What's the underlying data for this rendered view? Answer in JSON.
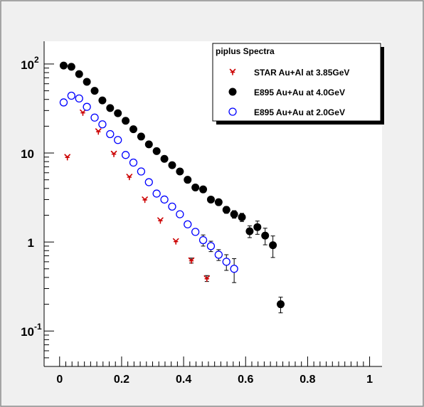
{
  "colors": {
    "frame_bg": "#f0f0f0",
    "plot_bg": "#ffffff",
    "axis": "#000000",
    "star": "#cc0000",
    "e895_40": "#000000",
    "e895_20": "#0000ff"
  },
  "chart_data": {
    "type": "scatter",
    "title": "",
    "xlabel": "",
    "ylabel": "",
    "xlim": [
      -0.05,
      1.04
    ],
    "ylim": [
      0.04,
      180
    ],
    "yscale": "log",
    "grid": false,
    "legend_position": "top-right",
    "x_ticks": [
      {
        "v": 0,
        "label": "0"
      },
      {
        "v": 0.2,
        "label": "0.2"
      },
      {
        "v": 0.4,
        "label": "0.4"
      },
      {
        "v": 0.6,
        "label": "0.6"
      },
      {
        "v": 0.8,
        "label": "0.8"
      },
      {
        "v": 1,
        "label": "1"
      }
    ],
    "y_ticks": [
      {
        "v": 0.1,
        "base": "10",
        "exp": "-1"
      },
      {
        "v": 1,
        "base": "1",
        "exp": ""
      },
      {
        "v": 10,
        "base": "10",
        "exp": ""
      },
      {
        "v": 100,
        "base": "10",
        "exp": "2"
      }
    ],
    "legend": {
      "title": "piplus Spectra",
      "entries": [
        {
          "label": "STAR Au+Al at 3.85GeV"
        },
        {
          "label": "E895 Au+Au at 4.0GeV"
        },
        {
          "label": "E895 Au+Au at 2.0GeV"
        }
      ]
    },
    "series": [
      {
        "name": "STAR Au+Al at 3.85GeV",
        "marker": "star",
        "points": [
          {
            "x": 0.025,
            "y": 9.0,
            "err": 0
          },
          {
            "x": 0.075,
            "y": 28.5,
            "err": 0
          },
          {
            "x": 0.125,
            "y": 17.5,
            "err": 0
          },
          {
            "x": 0.175,
            "y": 9.8,
            "err": 0
          },
          {
            "x": 0.225,
            "y": 5.4,
            "err": 0
          },
          {
            "x": 0.275,
            "y": 3.0,
            "err": 0
          },
          {
            "x": 0.325,
            "y": 1.75,
            "err": 0
          },
          {
            "x": 0.375,
            "y": 1.02,
            "err": 0
          },
          {
            "x": 0.425,
            "y": 0.62,
            "err": 0.04
          },
          {
            "x": 0.475,
            "y": 0.39,
            "err": 0.03
          }
        ]
      },
      {
        "name": "E895 Au+Au at 4.0GeV",
        "marker": "filled-circle",
        "points": [
          {
            "x": 0.013,
            "y": 96,
            "err": 0
          },
          {
            "x": 0.038,
            "y": 93,
            "err": 0
          },
          {
            "x": 0.063,
            "y": 77,
            "err": 0
          },
          {
            "x": 0.088,
            "y": 63,
            "err": 0
          },
          {
            "x": 0.113,
            "y": 50,
            "err": 0
          },
          {
            "x": 0.138,
            "y": 39,
            "err": 0
          },
          {
            "x": 0.163,
            "y": 32,
            "err": 0
          },
          {
            "x": 0.188,
            "y": 28,
            "err": 0
          },
          {
            "x": 0.213,
            "y": 23,
            "err": 0
          },
          {
            "x": 0.238,
            "y": 18.5,
            "err": 0
          },
          {
            "x": 0.263,
            "y": 15.3,
            "err": 0
          },
          {
            "x": 0.288,
            "y": 12.5,
            "err": 0
          },
          {
            "x": 0.313,
            "y": 10.5,
            "err": 0
          },
          {
            "x": 0.338,
            "y": 8.6,
            "err": 0
          },
          {
            "x": 0.363,
            "y": 7.3,
            "err": 0
          },
          {
            "x": 0.388,
            "y": 6.2,
            "err": 0
          },
          {
            "x": 0.413,
            "y": 5.0,
            "err": 0
          },
          {
            "x": 0.438,
            "y": 4.1,
            "err": 0.2
          },
          {
            "x": 0.463,
            "y": 3.9,
            "err": 0.2
          },
          {
            "x": 0.488,
            "y": 3.0,
            "err": 0.2
          },
          {
            "x": 0.513,
            "y": 2.8,
            "err": 0.2
          },
          {
            "x": 0.538,
            "y": 2.3,
            "err": 0.2
          },
          {
            "x": 0.563,
            "y": 2.05,
            "err": 0.2
          },
          {
            "x": 0.588,
            "y": 1.9,
            "err": 0.2
          },
          {
            "x": 0.613,
            "y": 1.32,
            "err": 0.2
          },
          {
            "x": 0.638,
            "y": 1.47,
            "err": 0.25
          },
          {
            "x": 0.663,
            "y": 1.18,
            "err": 0.25
          },
          {
            "x": 0.688,
            "y": 0.92,
            "err": 0.25
          },
          {
            "x": 0.713,
            "y": 0.2,
            "err": 0.04
          }
        ]
      },
      {
        "name": "E895 Au+Au at 2.0GeV",
        "marker": "open-circle",
        "points": [
          {
            "x": 0.013,
            "y": 37,
            "err": 0
          },
          {
            "x": 0.038,
            "y": 44,
            "err": 0
          },
          {
            "x": 0.063,
            "y": 41,
            "err": 0
          },
          {
            "x": 0.088,
            "y": 33,
            "err": 0
          },
          {
            "x": 0.113,
            "y": 25,
            "err": 0
          },
          {
            "x": 0.138,
            "y": 21,
            "err": 0
          },
          {
            "x": 0.163,
            "y": 16.3,
            "err": 0
          },
          {
            "x": 0.188,
            "y": 14.0,
            "err": 0
          },
          {
            "x": 0.213,
            "y": 9.5,
            "err": 0
          },
          {
            "x": 0.238,
            "y": 7.8,
            "err": 0
          },
          {
            "x": 0.263,
            "y": 6.2,
            "err": 0
          },
          {
            "x": 0.288,
            "y": 4.7,
            "err": 0
          },
          {
            "x": 0.313,
            "y": 3.5,
            "err": 0
          },
          {
            "x": 0.338,
            "y": 3.0,
            "err": 0
          },
          {
            "x": 0.363,
            "y": 2.5,
            "err": 0
          },
          {
            "x": 0.388,
            "y": 2.05,
            "err": 0
          },
          {
            "x": 0.413,
            "y": 1.58,
            "err": 0
          },
          {
            "x": 0.438,
            "y": 1.3,
            "err": 0.08
          },
          {
            "x": 0.463,
            "y": 1.05,
            "err": 0.15
          },
          {
            "x": 0.488,
            "y": 0.9,
            "err": 0.12
          },
          {
            "x": 0.513,
            "y": 0.72,
            "err": 0.1
          },
          {
            "x": 0.538,
            "y": 0.6,
            "err": 0.12
          },
          {
            "x": 0.563,
            "y": 0.5,
            "err": 0.15
          }
        ]
      }
    ]
  }
}
